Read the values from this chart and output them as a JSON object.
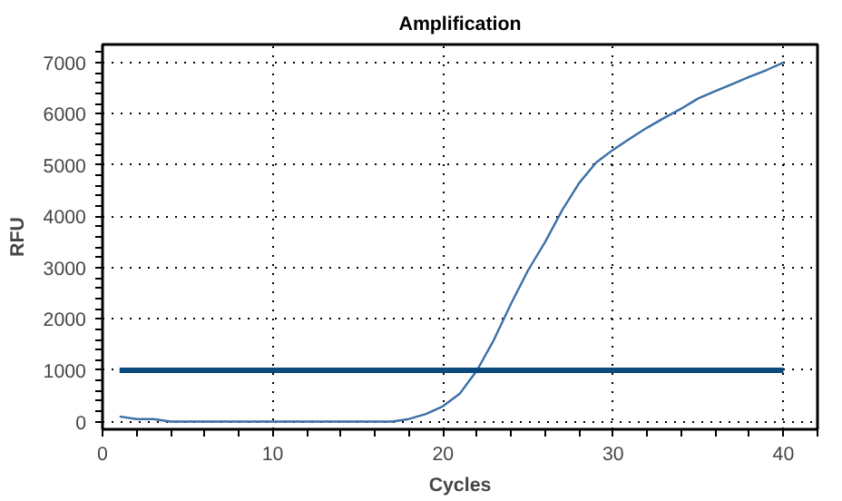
{
  "chart_data": {
    "type": "line",
    "title": "Amplification",
    "xlabel": "Cycles",
    "ylabel": "RFU",
    "xlim": [
      0,
      42
    ],
    "ylim": [
      -150,
      7350
    ],
    "xticks": [
      0,
      10,
      20,
      30,
      40
    ],
    "yticks": [
      0,
      1000,
      2000,
      3000,
      4000,
      5000,
      6000,
      7000
    ],
    "grid": true,
    "marker": "none",
    "line_style": "solid",
    "series": [
      {
        "color": "#3b6fa8",
        "x": [
          1,
          2,
          3,
          4,
          5,
          6,
          7,
          8,
          9,
          10,
          11,
          12,
          13,
          14,
          15,
          16,
          17,
          18,
          19,
          20,
          21,
          22,
          23,
          24,
          25,
          26,
          27,
          28,
          29,
          30,
          31,
          32,
          33,
          34,
          35,
          36,
          37,
          38,
          39,
          40
        ],
        "values": [
          100,
          50,
          50,
          0,
          0,
          0,
          0,
          0,
          0,
          0,
          0,
          0,
          0,
          0,
          0,
          0,
          0,
          50,
          150,
          300,
          550,
          1000,
          1600,
          2300,
          2950,
          3500,
          4120,
          4650,
          5050,
          5300,
          5520,
          5730,
          5920,
          6100,
          6300,
          6440,
          6580,
          6720,
          6850,
          7000
        ]
      },
      {
        "color": "#0b4a7d",
        "x": [
          1,
          40
        ],
        "values": [
          1000,
          1000
        ]
      }
    ]
  }
}
